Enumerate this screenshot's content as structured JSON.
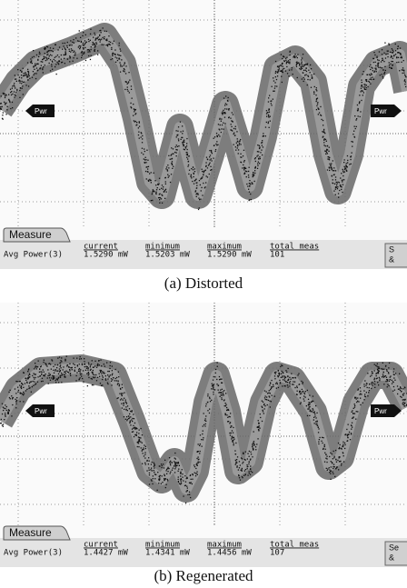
{
  "panels": [
    {
      "caption": "(a) Distorted",
      "pwr_left": "Pwr",
      "pwr_right": "Pwr",
      "measure": {
        "tab": "Measure",
        "headers": [
          "current",
          "minimum",
          "maximum",
          "total meas"
        ],
        "row_label": "Avg Power(3)",
        "values": [
          "1.5290 mW",
          "1.5203 mW",
          "1.5290 mW",
          "101"
        ],
        "side_button": [
          "S",
          "&"
        ]
      }
    },
    {
      "caption": "(b) Regenerated",
      "pwr_left": "Pwr",
      "pwr_right": "Pwr",
      "measure": {
        "tab": "Measure",
        "headers": [
          "current",
          "minimum",
          "maximum",
          "total meas"
        ],
        "row_label": "Avg Power(3)",
        "values": [
          "1.4427 mW",
          "1.4341 mW",
          "1.4456 mW",
          "107"
        ],
        "side_button": [
          "Se",
          "&"
        ]
      }
    }
  ]
}
